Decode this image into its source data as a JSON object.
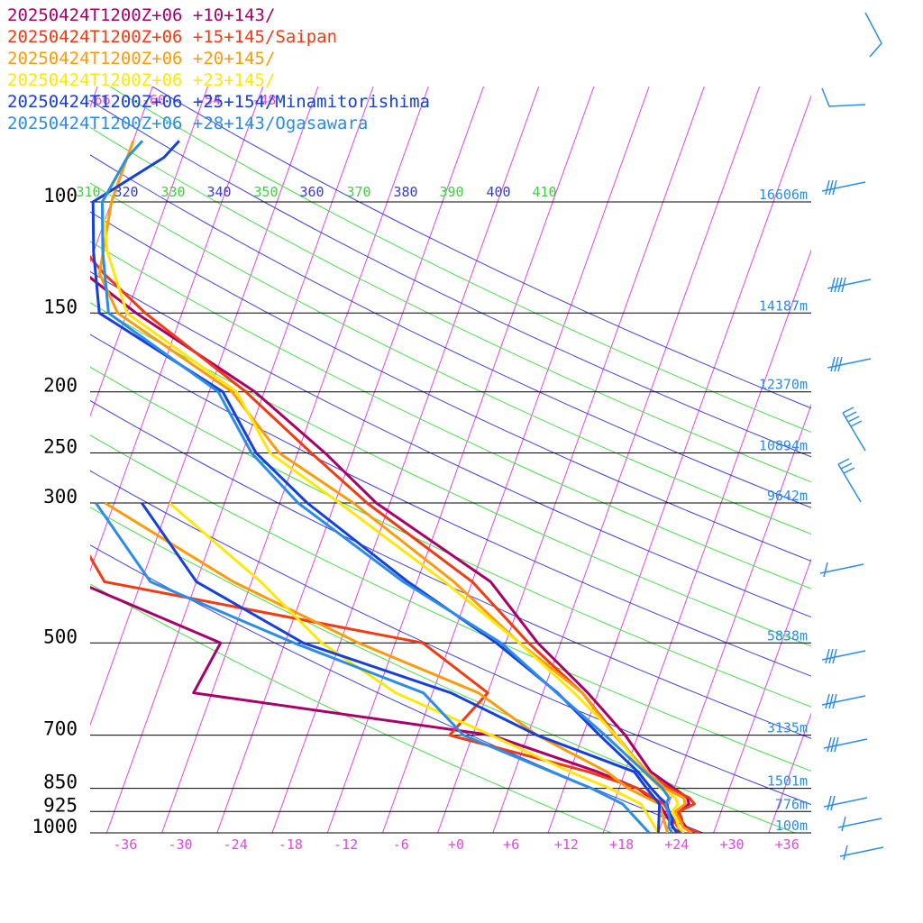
{
  "chart_data": {
    "type": "line",
    "title": "",
    "xlabel": "",
    "ylabel": "",
    "y_scale": "log",
    "ylim": [
      1000,
      100
    ],
    "temperature_ticks": [
      "-36",
      "-30",
      "-24",
      "-18",
      "-12",
      "-6",
      "+0",
      "+6",
      "+12",
      "+18",
      "+24",
      "+30",
      "+36"
    ],
    "temperature_tick_values": [
      -36,
      -30,
      -24,
      -18,
      -12,
      -6,
      0,
      6,
      12,
      18,
      24,
      30,
      36
    ],
    "pressure_levels": [
      {
        "label": "100",
        "p": 100,
        "height": "16606m"
      },
      {
        "label": "150",
        "p": 150,
        "height": "14187m"
      },
      {
        "label": "200",
        "p": 200,
        "height": "12370m"
      },
      {
        "label": "250",
        "p": 250,
        "height": "10894m"
      },
      {
        "label": "300",
        "p": 300,
        "height": "9642m"
      },
      {
        "label": "500",
        "p": 500,
        "height": "5838m"
      },
      {
        "label": "700",
        "p": 700,
        "height": "3135m"
      },
      {
        "label": "850",
        "p": 850,
        "height": "1501m"
      },
      {
        "label": "925",
        "p": 925,
        "height": "776m"
      },
      {
        "label": "1000",
        "p": 1000,
        "height": "100m"
      }
    ],
    "isotherm_upper_labels": [
      "-66",
      "-60",
      "-54",
      "-48"
    ],
    "isotherm_upper_values": [
      -66,
      -60,
      -54,
      -48
    ],
    "theta_labels": [
      "310",
      "320",
      "330",
      "340",
      "350",
      "360",
      "370",
      "380",
      "390",
      "400",
      "410"
    ],
    "theta_values": [
      310,
      320,
      330,
      340,
      350,
      360,
      370,
      380,
      390,
      400,
      410
    ],
    "series": [
      {
        "name": "20250424T1200Z+06 +10+143/",
        "color": "#a8006a",
        "temperature": [
          [
            1000,
            26.3
          ],
          [
            980,
            24.8
          ],
          [
            950,
            23.8
          ],
          [
            925,
            23.3
          ],
          [
            900,
            24.2
          ],
          [
            880,
            23.8
          ],
          [
            850,
            22.0
          ],
          [
            800,
            18.8
          ],
          [
            700,
            14.6
          ],
          [
            600,
            8.9
          ],
          [
            500,
            1.5
          ],
          [
            400,
            -6.0
          ],
          [
            300,
            -21.5
          ],
          [
            250,
            -29.0
          ],
          [
            200,
            -39.0
          ],
          [
            150,
            -55.0
          ],
          [
            120,
            -66.0
          ],
          [
            100,
            -71.0
          ],
          [
            85,
            -70.0
          ],
          [
            80,
            -70.0
          ]
        ],
        "dewpoint": [
          [
            1000,
            24.0
          ],
          [
            900,
            21.0
          ],
          [
            850,
            18.0
          ],
          [
            800,
            13.0
          ],
          [
            700,
            0.0
          ],
          [
            600,
            -34.0
          ],
          [
            500,
            -33.0
          ],
          [
            400,
            -51.0
          ],
          [
            300,
            -54.0
          ]
        ]
      },
      {
        "name": "20250424T1200Z+06 +15+145/Saipan",
        "color": "#f23a13",
        "temperature": [
          [
            1000,
            26.5
          ],
          [
            980,
            24.5
          ],
          [
            950,
            24.0
          ],
          [
            925,
            23.4
          ],
          [
            900,
            24.8
          ],
          [
            880,
            24.0
          ],
          [
            850,
            21.5
          ],
          [
            800,
            18.2
          ],
          [
            700,
            13.6
          ],
          [
            600,
            8.3
          ],
          [
            500,
            0.5
          ],
          [
            400,
            -8.0
          ],
          [
            300,
            -22.5
          ],
          [
            250,
            -30.5
          ],
          [
            200,
            -40.0
          ],
          [
            150,
            -54.0
          ],
          [
            130,
            -60.0
          ],
          [
            110,
            -66.0
          ],
          [
            100,
            -68.0
          ],
          [
            85,
            -67.0
          ],
          [
            80,
            -67.0
          ]
        ],
        "dewpoint": [
          [
            1000,
            24.5
          ],
          [
            900,
            21.5
          ],
          [
            850,
            18.0
          ],
          [
            800,
            12.0
          ],
          [
            700,
            -4.5
          ],
          [
            600,
            -2.0
          ],
          [
            500,
            -11.0
          ],
          [
            400,
            -48.0
          ],
          [
            300,
            -56.0
          ]
        ]
      },
      {
        "name": "20250424T1200Z+06 +20+145/",
        "color": "#ff9a0a",
        "temperature": [
          [
            1000,
            25.6
          ],
          [
            980,
            24.5
          ],
          [
            950,
            23.7
          ],
          [
            925,
            23.0
          ],
          [
            900,
            23.8
          ],
          [
            880,
            23.4
          ],
          [
            850,
            21.0
          ],
          [
            800,
            18.4
          ],
          [
            700,
            13.4
          ],
          [
            600,
            8.3
          ],
          [
            500,
            -0.5
          ],
          [
            400,
            -10.0
          ],
          [
            300,
            -24.0
          ],
          [
            250,
            -34.0
          ],
          [
            200,
            -41.5
          ],
          [
            150,
            -57.0
          ],
          [
            130,
            -60.5
          ],
          [
            100,
            -62.0
          ],
          [
            85,
            -62.0
          ],
          [
            80,
            -62.0
          ]
        ],
        "dewpoint": [
          [
            1000,
            23.0
          ],
          [
            900,
            21.0
          ],
          [
            850,
            17.0
          ],
          [
            800,
            14.0
          ],
          [
            700,
            5.0
          ],
          [
            600,
            -3.0
          ],
          [
            500,
            -18.0
          ],
          [
            400,
            -34.0
          ],
          [
            300,
            -51.0
          ]
        ]
      },
      {
        "name": "20250424T1200Z+06 +23+145/",
        "color": "#fde80a",
        "temperature": [
          [
            1000,
            24.8
          ],
          [
            980,
            24.0
          ],
          [
            950,
            23.4
          ],
          [
            925,
            22.7
          ],
          [
            900,
            23.0
          ],
          [
            880,
            22.5
          ],
          [
            850,
            20.5
          ],
          [
            800,
            18.0
          ],
          [
            700,
            13.6
          ],
          [
            600,
            7.4
          ],
          [
            500,
            -0.5
          ],
          [
            400,
            -11.0
          ],
          [
            300,
            -25.5
          ],
          [
            250,
            -35.0
          ],
          [
            200,
            -41.0
          ],
          [
            150,
            -56.0
          ],
          [
            120,
            -60.5
          ],
          [
            100,
            -63.0
          ],
          [
            85,
            -62.0
          ],
          [
            80,
            -61.0
          ]
        ],
        "dewpoint": [
          [
            1000,
            22.0
          ],
          [
            900,
            19.0
          ],
          [
            850,
            15.0
          ],
          [
            800,
            10.0
          ],
          [
            700,
            0.0
          ],
          [
            600,
            -12.0
          ],
          [
            500,
            -22.0
          ],
          [
            400,
            -31.0
          ],
          [
            300,
            -44.0
          ]
        ]
      },
      {
        "name": "20250424T1200Z+06 +25+154/Minamitorishima",
        "color": "#1640dc",
        "temperature": [
          [
            1000,
            24.3
          ],
          [
            980,
            23.3
          ],
          [
            950,
            23.0
          ],
          [
            925,
            22.3
          ],
          [
            900,
            21.8
          ],
          [
            880,
            20.8
          ],
          [
            850,
            19.5
          ],
          [
            800,
            17.4
          ],
          [
            700,
            11.8
          ],
          [
            600,
            5.6
          ],
          [
            500,
            -3.0
          ],
          [
            400,
            -15.0
          ],
          [
            300,
            -29.0
          ],
          [
            250,
            -36.5
          ],
          [
            200,
            -42.5
          ],
          [
            150,
            -59.0
          ],
          [
            120,
            -62.0
          ],
          [
            100,
            -64.0
          ],
          [
            85,
            -58.0
          ],
          [
            80,
            -57.0
          ]
        ],
        "dewpoint": [
          [
            1000,
            22.0
          ],
          [
            900,
            21.0
          ],
          [
            850,
            19.0
          ],
          [
            800,
            17.0
          ],
          [
            700,
            5.0
          ],
          [
            600,
            -6.0
          ],
          [
            500,
            -24.0
          ],
          [
            400,
            -38.0
          ],
          [
            300,
            -47.0
          ]
        ]
      },
      {
        "name": "20250424T1200Z+06 +28+143/Ogasawara",
        "color": "#2b8de7",
        "temperature": [
          [
            1000,
            23.5
          ],
          [
            980,
            22.9
          ],
          [
            950,
            22.7
          ],
          [
            925,
            22.2
          ],
          [
            900,
            21.7
          ],
          [
            880,
            21.8
          ],
          [
            850,
            20.7
          ],
          [
            800,
            18.1
          ],
          [
            700,
            12.4
          ],
          [
            600,
            5.5
          ],
          [
            500,
            -2.5
          ],
          [
            400,
            -15.5
          ],
          [
            300,
            -30.0
          ],
          [
            250,
            -37.0
          ],
          [
            200,
            -43.0
          ],
          [
            150,
            -58.0
          ],
          [
            120,
            -61.0
          ],
          [
            100,
            -63.0
          ],
          [
            85,
            -62.0
          ],
          [
            80,
            -61.0
          ]
        ],
        "dewpoint": [
          [
            1000,
            21.0
          ],
          [
            900,
            17.0
          ],
          [
            850,
            13.0
          ],
          [
            800,
            8.0
          ],
          [
            700,
            -3.0
          ],
          [
            600,
            -9.0
          ],
          [
            500,
            -25.0
          ],
          [
            400,
            -43.0
          ],
          [
            300,
            -52.0
          ]
        ]
      }
    ],
    "wind_barb_color": "#2b8de7",
    "colors": {
      "isotherm": "#e048e0",
      "dry_adiabat": "#4040e0",
      "moist_adiabat": "#48e048",
      "isobar": "#000000",
      "height_label": "#2b8de7",
      "theta_blue": "#3a3ad0",
      "theta_green": "#3fd03f"
    }
  }
}
